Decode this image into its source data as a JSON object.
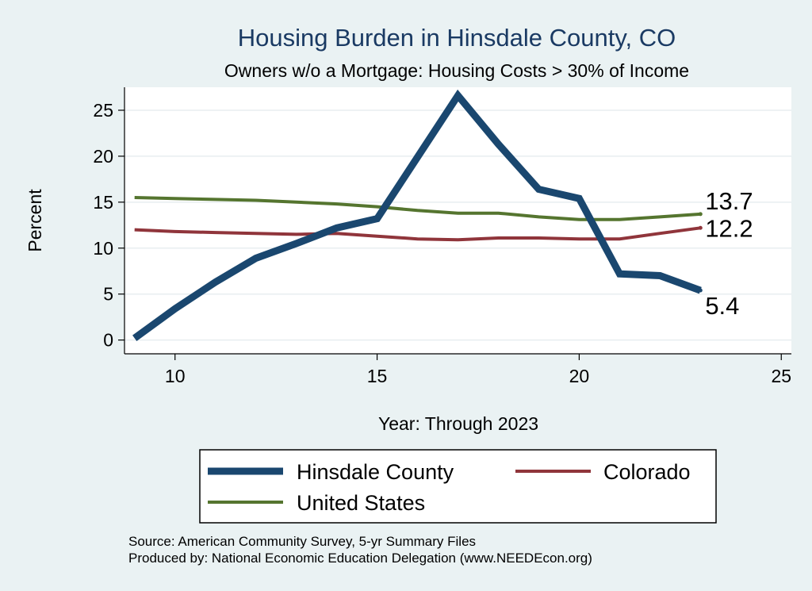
{
  "chart_data": {
    "type": "line",
    "title": "Housing Burden in Hinsdale County, CO",
    "subtitle": "Owners w/o a Mortgage: Housing Costs > 30% of Income",
    "xlabel": "Year: Through 2023",
    "ylabel": "Percent",
    "xlim": [
      8.75,
      25.25
    ],
    "ylim": [
      -1.5,
      27.5
    ],
    "xticks": [
      10,
      15,
      20,
      25
    ],
    "yticks": [
      0,
      5,
      10,
      15,
      20,
      25
    ],
    "grid": true,
    "legend_position": "bottom",
    "series": [
      {
        "name": "Hinsdale County",
        "color": "#1a476f",
        "width": 9,
        "x": [
          9,
          10,
          11,
          12,
          13,
          14,
          15,
          16,
          17,
          18,
          19,
          20,
          21,
          22,
          23
        ],
        "values": [
          0.2,
          3.4,
          6.3,
          8.9,
          10.5,
          12.2,
          13.2,
          19.9,
          26.6,
          21.3,
          16.4,
          15.4,
          7.2,
          7.0,
          5.4
        ],
        "end_label": "5.4"
      },
      {
        "name": "Colorado",
        "color": "#90353b",
        "width": 4,
        "x": [
          9,
          10,
          11,
          12,
          13,
          14,
          15,
          16,
          17,
          18,
          19,
          20,
          21,
          22,
          23
        ],
        "values": [
          12.0,
          11.8,
          11.7,
          11.6,
          11.5,
          11.6,
          11.3,
          11.0,
          10.9,
          11.1,
          11.1,
          11.0,
          11.0,
          11.6,
          12.2
        ],
        "end_label": "12.2"
      },
      {
        "name": "United States",
        "color": "#55752f",
        "width": 4,
        "x": [
          9,
          10,
          11,
          12,
          13,
          14,
          15,
          16,
          17,
          18,
          19,
          20,
          21,
          22,
          23
        ],
        "values": [
          15.5,
          15.4,
          15.3,
          15.2,
          15.0,
          14.8,
          14.5,
          14.1,
          13.8,
          13.8,
          13.4,
          13.1,
          13.1,
          13.4,
          13.7
        ],
        "end_label": "13.7"
      }
    ]
  },
  "source_note": {
    "line1": "Source: American Community Survey, 5-yr Summary Files",
    "line2": "Produced by: National Economic Education Delegation (www.NEEDEcon.org)"
  }
}
